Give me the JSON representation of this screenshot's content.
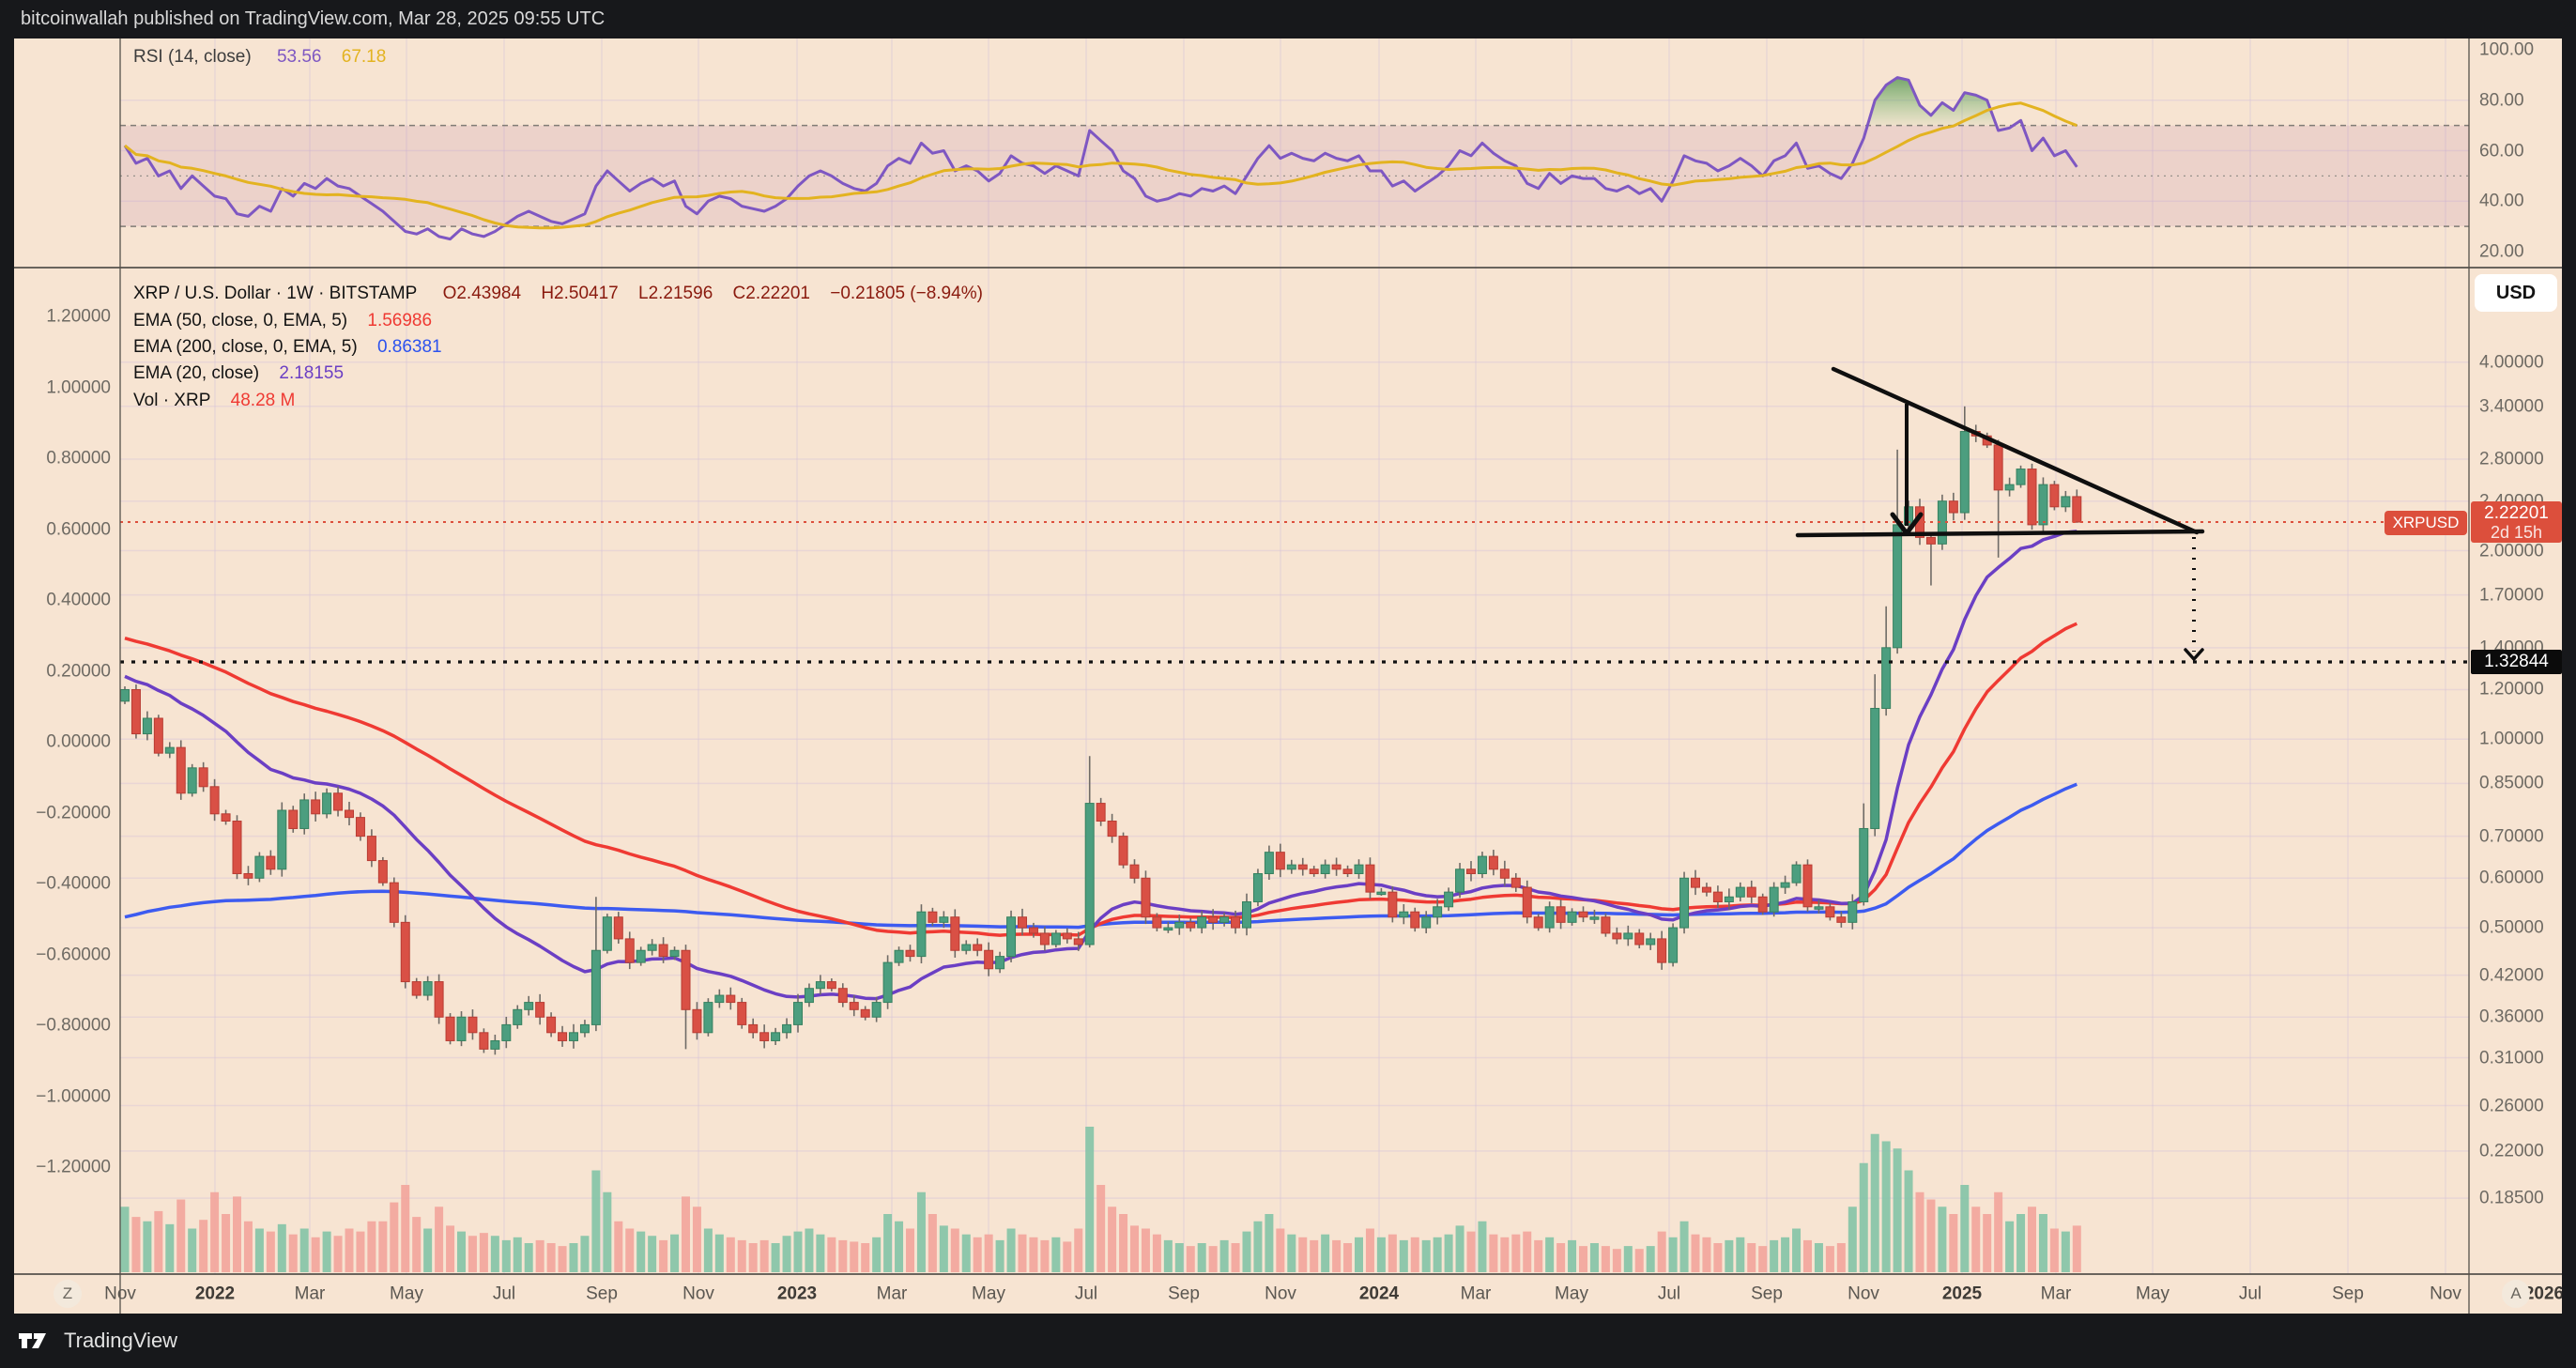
{
  "topbar": {
    "text": "bitcoinwallah published on TradingView.com, Mar 28, 2025 09:55 UTC"
  },
  "rsi_legend": {
    "label": "RSI (14, close)",
    "value1": "53.56",
    "value2": "67.18"
  },
  "main_legend": {
    "title": "XRP / U.S. Dollar · 1W · BITSTAMP",
    "ohlc": {
      "open": "O2.43984",
      "high": "H2.50417",
      "low": "L2.21596",
      "close": "C2.22201",
      "change": "−0.21805 (−8.94%)"
    },
    "ema50": {
      "label": "EMA (50, close, 0, EMA, 5)",
      "value": "1.56986"
    },
    "ema200": {
      "label": "EMA (200, close, 0, EMA, 5)",
      "value": "0.86381"
    },
    "ema20": {
      "label": "EMA (20, close)",
      "value": "2.18155"
    },
    "vol": {
      "label": "Vol · XRP",
      "value": "48.28 M"
    }
  },
  "symbol_label": "XRPUSD",
  "left_axis": {
    "ticks": [
      "1.20000",
      "1.00000",
      "0.80000",
      "0.60000",
      "0.40000",
      "0.20000",
      "0.00000",
      "−0.20000",
      "−0.40000",
      "−0.60000",
      "−0.80000",
      "−1.00000",
      "−1.20000"
    ],
    "log_button": "Z"
  },
  "right_axis": {
    "currency_button": "USD",
    "rsi_ticks": [
      "100.00",
      "80.00",
      "60.00",
      "40.00",
      "20.00"
    ],
    "price_ticks": [
      "4.00000",
      "3.40000",
      "2.80000",
      "2.40000",
      "2.00000",
      "1.70000",
      "1.40000",
      "1.20000",
      "1.00000",
      "0.85000",
      "0.70000",
      "0.60000",
      "0.50000",
      "0.42000",
      "0.36000",
      "0.31000",
      "0.26000",
      "0.22000",
      "0.18500"
    ],
    "price_badge": {
      "price": "2.22201",
      "countdown": "2d 15h"
    },
    "level_badge": "1.32844",
    "auto_button": "A"
  },
  "time_axis": {
    "labels": [
      {
        "text": "Nov",
        "year": false
      },
      {
        "text": "2022",
        "year": true
      },
      {
        "text": "Mar",
        "year": false
      },
      {
        "text": "May",
        "year": false
      },
      {
        "text": "Jul",
        "year": false
      },
      {
        "text": "Sep",
        "year": false
      },
      {
        "text": "Nov",
        "year": false
      },
      {
        "text": "2023",
        "year": true
      },
      {
        "text": "Mar",
        "year": false
      },
      {
        "text": "May",
        "year": false
      },
      {
        "text": "Jul",
        "year": false
      },
      {
        "text": "Sep",
        "year": false
      },
      {
        "text": "Nov",
        "year": false
      },
      {
        "text": "2024",
        "year": true
      },
      {
        "text": "Mar",
        "year": false
      },
      {
        "text": "May",
        "year": false
      },
      {
        "text": "Jul",
        "year": false
      },
      {
        "text": "Sep",
        "year": false
      },
      {
        "text": "Nov",
        "year": false
      },
      {
        "text": "2025",
        "year": true
      },
      {
        "text": "Mar",
        "year": false
      },
      {
        "text": "May",
        "year": false
      },
      {
        "text": "Jul",
        "year": false
      },
      {
        "text": "Sep",
        "year": false
      },
      {
        "text": "Nov",
        "year": false
      },
      {
        "text": "2026",
        "year": true
      }
    ]
  },
  "footer": {
    "brand": "TradingView"
  },
  "colors": {
    "background": "#f7e4d2",
    "frame_dark": "#17181b",
    "grid": "rgba(215,196,216,0.42)",
    "separator": "#3c3a36",
    "plot_border": "#55504a",
    "candle_up": "#4c9e7f",
    "candle_up_border": "#36815f",
    "candle_down": "#d95045",
    "candle_down_border": "#b83c33",
    "wick": "#6f6b66",
    "volume_up": "#7cc2a5",
    "volume_down": "#f2a199",
    "ema20": "#6b3fc4",
    "ema50": "#ef3a33",
    "ema200": "#3d5bf0",
    "rsi_line": "#7e57c2",
    "rsi_ma": "#e3b320",
    "rsi_band_fill": "rgba(150,60,140,0.10)",
    "rsi_dashed": "#817c76",
    "rsi_over_fill": "rgba(46,125,50,0.75)",
    "badge_red": "#dc4f3c",
    "badge_black": "#0b0b0b",
    "annotation": "#0f0f0f",
    "axis_text": "#6e6a63",
    "legend_ohlc": "#8a1a0e"
  },
  "chart_data": {
    "type": "candlestick",
    "symbol": "XRP/USD",
    "timeframe": "1W",
    "exchange": "BITSTAMP",
    "price_scale": "log",
    "x_range": [
      "Nov 2021",
      "Mar 2026"
    ],
    "panes": [
      "RSI (14) with MA",
      "price with EMA 20/50/200 and volume"
    ],
    "rsi_levels": [
      70,
      50,
      30
    ],
    "current_price": 2.22201,
    "support_level": 1.32844,
    "last_candle": {
      "o": 2.43984,
      "h": 2.50417,
      "l": 2.21596,
      "c": 2.22201,
      "change": -0.21805,
      "change_pct": -8.94
    },
    "indicator_values": {
      "rsi": 53.56,
      "rsi_ma": 67.18,
      "ema20": 2.18155,
      "ema50": 1.56986,
      "ema200": 0.86381,
      "volume": "48.28 M"
    },
    "weekly_closes": [
      1.2,
      1.02,
      1.08,
      0.95,
      0.97,
      0.82,
      0.9,
      0.84,
      0.76,
      0.74,
      0.61,
      0.6,
      0.65,
      0.62,
      0.77,
      0.72,
      0.8,
      0.76,
      0.82,
      0.77,
      0.75,
      0.7,
      0.64,
      0.59,
      0.51,
      0.41,
      0.39,
      0.41,
      0.36,
      0.33,
      0.36,
      0.34,
      0.32,
      0.33,
      0.35,
      0.37,
      0.38,
      0.36,
      0.34,
      0.33,
      0.34,
      0.35,
      0.46,
      0.52,
      0.48,
      0.44,
      0.46,
      0.47,
      0.45,
      0.46,
      0.37,
      0.34,
      0.38,
      0.39,
      0.38,
      0.35,
      0.34,
      0.33,
      0.34,
      0.35,
      0.38,
      0.4,
      0.41,
      0.4,
      0.38,
      0.37,
      0.36,
      0.38,
      0.44,
      0.46,
      0.45,
      0.53,
      0.51,
      0.52,
      0.46,
      0.47,
      0.46,
      0.43,
      0.45,
      0.52,
      0.5,
      0.49,
      0.47,
      0.49,
      0.48,
      0.47,
      0.79,
      0.74,
      0.7,
      0.63,
      0.6,
      0.52,
      0.5,
      0.5,
      0.51,
      0.5,
      0.52,
      0.51,
      0.52,
      0.5,
      0.55,
      0.61,
      0.66,
      0.62,
      0.63,
      0.62,
      0.61,
      0.63,
      0.62,
      0.61,
      0.63,
      0.57,
      0.57,
      0.52,
      0.53,
      0.5,
      0.52,
      0.54,
      0.57,
      0.62,
      0.61,
      0.65,
      0.62,
      0.6,
      0.58,
      0.52,
      0.5,
      0.54,
      0.51,
      0.53,
      0.52,
      0.52,
      0.49,
      0.48,
      0.49,
      0.47,
      0.48,
      0.44,
      0.5,
      0.6,
      0.58,
      0.57,
      0.55,
      0.56,
      0.58,
      0.56,
      0.53,
      0.58,
      0.59,
      0.63,
      0.54,
      0.54,
      0.52,
      0.51,
      0.55,
      0.72,
      1.12,
      1.4,
      2.2,
      2.35,
      2.1,
      2.05,
      2.4,
      2.3,
      3.1,
      3.05,
      2.95,
      2.5,
      2.55,
      2.7,
      2.2,
      2.55,
      2.35,
      2.43984,
      2.22201
    ],
    "wick_overrides": {
      "42": {
        "h": 0.56
      },
      "50": {
        "l": 0.32
      },
      "86": {
        "h": 0.94,
        "l": 0.465
      },
      "155": {
        "h": 0.79
      },
      "156": {
        "h": 1.27,
        "l": 0.7
      },
      "157": {
        "h": 1.63
      },
      "158": {
        "h": 2.9,
        "l": 1.37
      },
      "161": {
        "l": 1.76
      },
      "164": {
        "h": 3.4,
        "l": 2.24
      },
      "167": {
        "l": 1.95
      },
      "174": {
        "h": 2.50417,
        "l": 2.21596
      }
    },
    "volume_rel": [
      0.45,
      0.38,
      0.35,
      0.42,
      0.33,
      0.5,
      0.3,
      0.36,
      0.55,
      0.4,
      0.52,
      0.35,
      0.3,
      0.28,
      0.33,
      0.26,
      0.3,
      0.24,
      0.28,
      0.25,
      0.3,
      0.28,
      0.35,
      0.35,
      0.48,
      0.6,
      0.38,
      0.3,
      0.45,
      0.32,
      0.28,
      0.25,
      0.27,
      0.25,
      0.22,
      0.24,
      0.2,
      0.22,
      0.2,
      0.18,
      0.2,
      0.25,
      0.7,
      0.55,
      0.35,
      0.3,
      0.28,
      0.25,
      0.22,
      0.26,
      0.52,
      0.45,
      0.3,
      0.26,
      0.24,
      0.22,
      0.2,
      0.22,
      0.2,
      0.25,
      0.28,
      0.3,
      0.26,
      0.24,
      0.22,
      0.21,
      0.2,
      0.24,
      0.4,
      0.35,
      0.3,
      0.55,
      0.4,
      0.32,
      0.3,
      0.26,
      0.24,
      0.26,
      0.22,
      0.3,
      0.26,
      0.24,
      0.22,
      0.24,
      0.21,
      0.3,
      1.0,
      0.6,
      0.45,
      0.4,
      0.32,
      0.3,
      0.26,
      0.22,
      0.2,
      0.18,
      0.2,
      0.18,
      0.22,
      0.2,
      0.28,
      0.35,
      0.4,
      0.3,
      0.26,
      0.24,
      0.22,
      0.26,
      0.22,
      0.2,
      0.24,
      0.3,
      0.24,
      0.26,
      0.22,
      0.24,
      0.22,
      0.24,
      0.26,
      0.32,
      0.28,
      0.35,
      0.26,
      0.24,
      0.26,
      0.28,
      0.22,
      0.24,
      0.2,
      0.22,
      0.18,
      0.2,
      0.18,
      0.16,
      0.18,
      0.16,
      0.18,
      0.28,
      0.24,
      0.35,
      0.26,
      0.24,
      0.2,
      0.22,
      0.24,
      0.2,
      0.18,
      0.22,
      0.24,
      0.3,
      0.22,
      0.2,
      0.18,
      0.2,
      0.45,
      0.75,
      0.95,
      0.9,
      0.85,
      0.7,
      0.55,
      0.5,
      0.45,
      0.4,
      0.6,
      0.45,
      0.4,
      0.55,
      0.35,
      0.4,
      0.45,
      0.4,
      0.3,
      0.28,
      0.32
    ],
    "rsi_series": [
      62,
      55,
      57,
      50,
      52,
      45,
      50,
      46,
      42,
      41,
      35,
      34,
      38,
      36,
      45,
      42,
      47,
      45,
      49,
      46,
      45,
      42,
      39,
      36,
      32,
      28,
      27,
      29,
      26,
      25,
      29,
      27,
      26,
      28,
      31,
      34,
      36,
      34,
      32,
      31,
      33,
      35,
      46,
      52,
      48,
      44,
      47,
      49,
      46,
      48,
      38,
      35,
      40,
      42,
      41,
      38,
      37,
      36,
      38,
      41,
      46,
      50,
      52,
      50,
      47,
      45,
      44,
      47,
      54,
      57,
      55,
      63,
      59,
      60,
      52,
      54,
      52,
      48,
      51,
      58,
      55,
      54,
      51,
      54,
      52,
      50,
      68,
      64,
      60,
      52,
      49,
      42,
      40,
      41,
      43,
      42,
      45,
      44,
      46,
      43,
      50,
      57,
      62,
      57,
      59,
      57,
      56,
      59,
      57,
      56,
      58,
      52,
      52,
      46,
      48,
      44,
      47,
      50,
      54,
      60,
      58,
      63,
      59,
      56,
      54,
      47,
      45,
      51,
      47,
      50,
      49,
      49,
      45,
      44,
      46,
      43,
      45,
      40,
      48,
      58,
      56,
      55,
      52,
      54,
      57,
      54,
      50,
      56,
      58,
      63,
      53,
      54,
      51,
      49,
      55,
      65,
      80,
      86,
      89,
      88,
      78,
      74,
      79,
      76,
      83,
      82,
      80,
      68,
      69,
      72,
      60,
      65,
      58,
      60,
      53.56
    ],
    "annotations": {
      "descending_trendline": {
        "x1": 1953,
        "y1": 393,
        "x2": 2340,
        "y2": 567
      },
      "horizontal_support": {
        "x1": 1915,
        "y1": 570,
        "x2": 2346,
        "y2": 566
      },
      "breakdown_arrow": {
        "x": 2031,
        "y1": 430,
        "y2": 560
      },
      "projection_dotted": {
        "x": 2337,
        "y1": 572,
        "y2": 694
      }
    }
  }
}
